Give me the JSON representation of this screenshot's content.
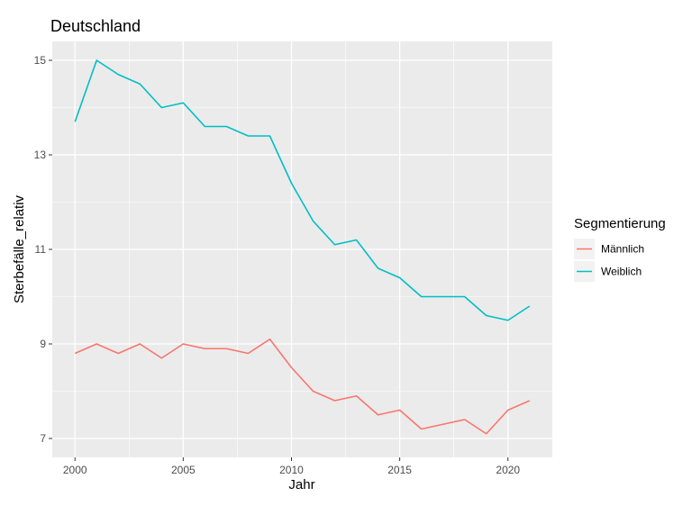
{
  "chart_data": {
    "type": "line",
    "title": "Deutschland",
    "xlabel": "Jahr",
    "ylabel": "Sterbefälle_relativ",
    "x": [
      2000,
      2001,
      2002,
      2003,
      2004,
      2005,
      2006,
      2007,
      2008,
      2009,
      2010,
      2011,
      2012,
      2013,
      2014,
      2015,
      2016,
      2017,
      2018,
      2019,
      2020,
      2021
    ],
    "series": [
      {
        "name": "Männlich",
        "color": "#F8766D",
        "values": [
          8.8,
          9.0,
          8.8,
          9.0,
          8.7,
          9.0,
          8.9,
          8.9,
          8.8,
          9.1,
          8.5,
          8.0,
          7.8,
          7.9,
          7.5,
          7.6,
          7.2,
          7.3,
          7.4,
          7.1,
          7.6,
          7.8
        ]
      },
      {
        "name": "Weiblich",
        "color": "#00BFC4",
        "values": [
          13.7,
          15.0,
          14.7,
          14.5,
          14.0,
          14.1,
          13.6,
          13.6,
          13.4,
          13.4,
          12.4,
          11.6,
          11.1,
          11.2,
          10.6,
          10.4,
          10.0,
          10.0,
          10.0,
          9.6,
          9.5,
          9.8
        ]
      }
    ],
    "xticks": [
      2000,
      2005,
      2010,
      2015,
      2020
    ],
    "yticks": [
      7,
      9,
      11,
      13,
      15
    ],
    "xlim": [
      1998.95,
      2022.05
    ],
    "ylim": [
      6.6,
      15.4
    ],
    "grid": true,
    "legend": {
      "title": "Segmentierung",
      "position": "right"
    }
  }
}
